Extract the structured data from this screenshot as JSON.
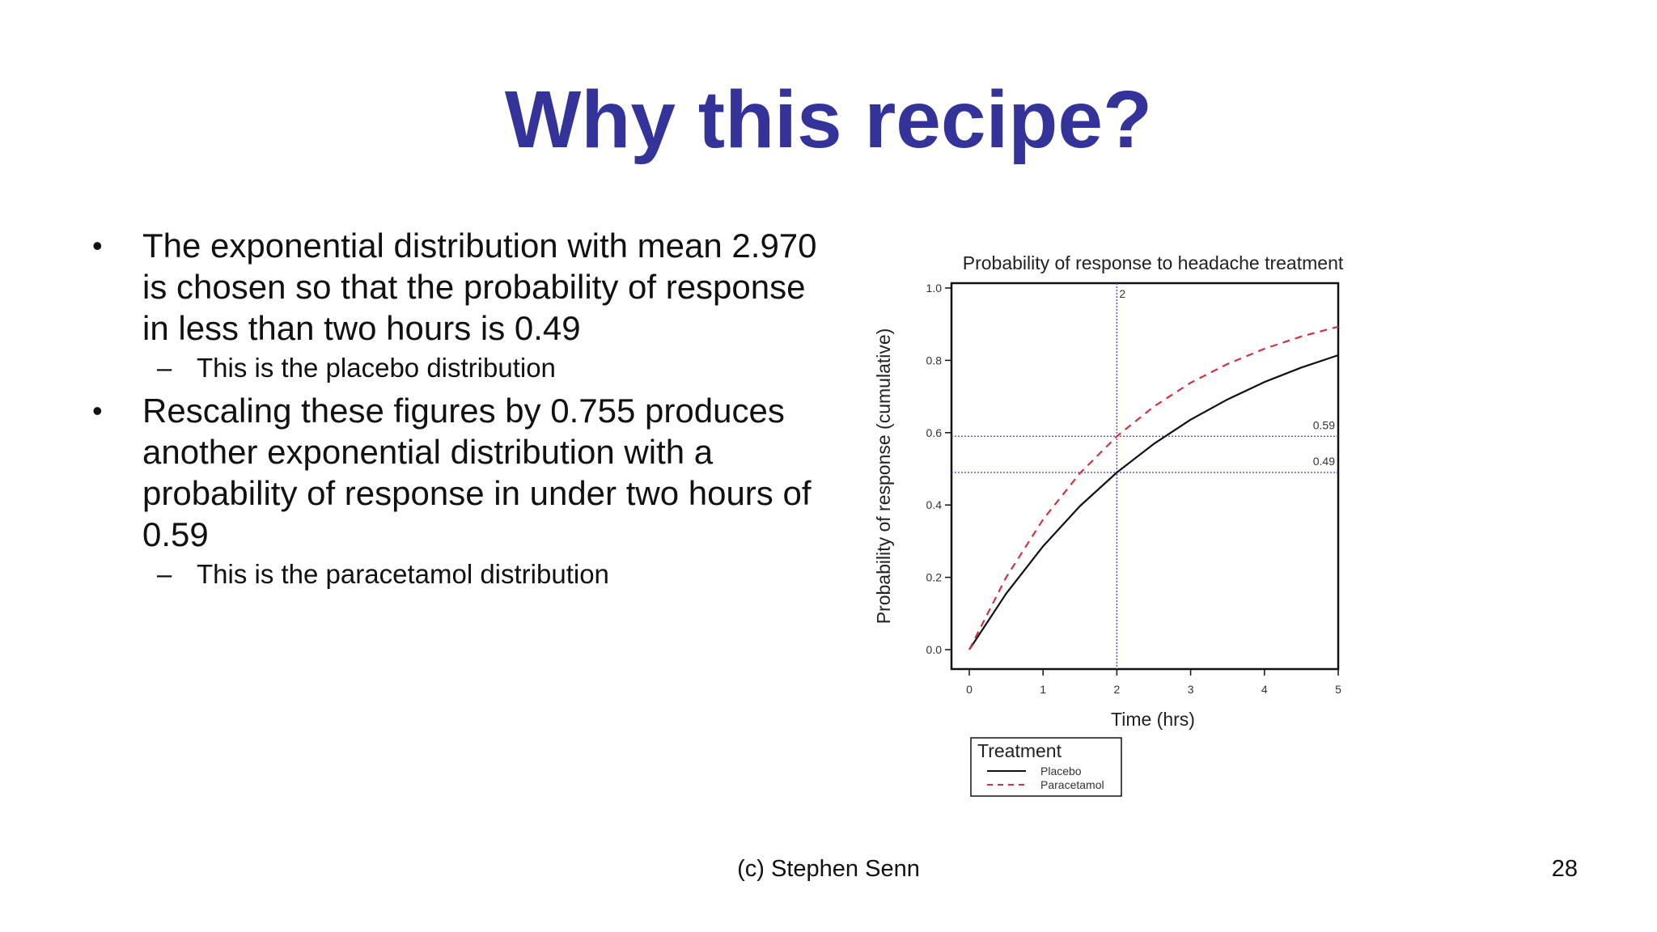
{
  "slide": {
    "title": "Why this recipe?",
    "bullets": [
      {
        "text": "The exponential distribution with mean 2.970 is chosen so that the probability of response in less than two hours is 0.49",
        "sub": "This is the placebo distribution"
      },
      {
        "text": "Rescaling these figures by 0.755 produces another exponential distribution with a probability of response in under two hours of 0.59",
        "sub": "This is the paracetamol distribution"
      }
    ],
    "bullet_mark": "•",
    "sub_mark": "–",
    "footer": "(c) Stephen Senn",
    "page_number": "28"
  },
  "chart_data": {
    "type": "line",
    "title": "Probability of response to headache treatment",
    "xlabel": "Time (hrs)",
    "ylabel": "Probability of response (cumulative)",
    "xlim": [
      0,
      5
    ],
    "ylim": [
      0,
      1.0
    ],
    "x_ticks": [
      "0",
      "1",
      "2",
      "3",
      "4",
      "5"
    ],
    "y_ticks": [
      "0.0",
      "0.2",
      "0.4",
      "0.6",
      "0.8",
      "1.0"
    ],
    "series": [
      {
        "name": "Placebo",
        "color": "#111111",
        "style": "solid",
        "x": [
          0,
          0.5,
          1,
          1.5,
          2,
          2.5,
          3,
          3.5,
          4,
          4.5,
          5
        ],
        "y": [
          0,
          0.155,
          0.286,
          0.397,
          0.49,
          0.569,
          0.636,
          0.692,
          0.74,
          0.78,
          0.814
        ]
      },
      {
        "name": "Paracetamol",
        "color": "#cc3344",
        "style": "dashed",
        "x": [
          0,
          0.5,
          1,
          1.5,
          2,
          2.5,
          3,
          3.5,
          4,
          4.5,
          5
        ],
        "y": [
          0,
          0.2,
          0.36,
          0.488,
          0.59,
          0.672,
          0.738,
          0.79,
          0.832,
          0.866,
          0.893
        ]
      }
    ],
    "reference_lines": [
      {
        "axis": "x",
        "value": 2,
        "label": "2",
        "color": "#4444aa"
      },
      {
        "axis": "y",
        "value": 0.59,
        "label": "0.59",
        "color": "#4444aa"
      },
      {
        "axis": "y",
        "value": 0.49,
        "label": "0.49",
        "color": "#4444aa"
      }
    ],
    "legend": {
      "title": "Treatment",
      "placement": "bottom-left",
      "entries": [
        "Placebo",
        "Paracetamol"
      ]
    },
    "grid": false
  }
}
